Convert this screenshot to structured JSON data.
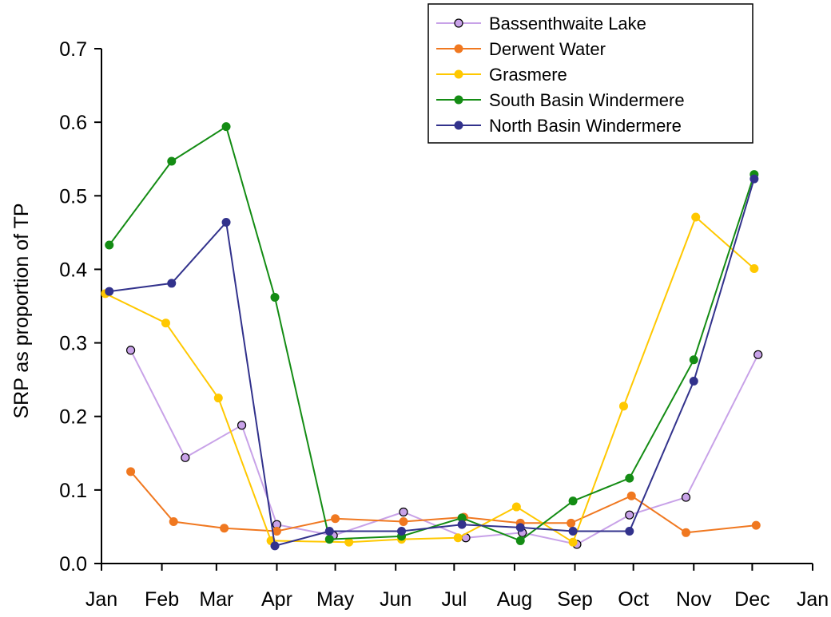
{
  "chart_data": {
    "type": "line",
    "title": "",
    "xlabel": "",
    "ylabel": "SRP as proportion of TP",
    "ylim": [
      0,
      0.7
    ],
    "yticks": [
      "0.0",
      "0.1",
      "0.2",
      "0.3",
      "0.4",
      "0.5",
      "0.6",
      "0.7"
    ],
    "yticks_values": [
      0,
      0.1,
      0.2,
      0.3,
      0.4,
      0.5,
      0.6,
      0.7
    ],
    "x_axis": {
      "type": "date",
      "range": [
        "2005-01-01",
        "2006-01-01"
      ],
      "tick_labels": [
        "Jan",
        "Feb",
        "Mar",
        "Apr",
        "May",
        "Jun",
        "Jul",
        "Aug",
        "Sep",
        "Oct",
        "Nov",
        "Dec",
        "Jan"
      ],
      "tick_dates": [
        "2005-01-01",
        "2005-02-01",
        "2005-03-01",
        "2005-04-01",
        "2005-05-01",
        "2005-06-01",
        "2005-07-01",
        "2005-08-01",
        "2005-09-01",
        "2005-10-01",
        "2005-11-01",
        "2005-12-01",
        "2006-01-01"
      ]
    },
    "grid": false,
    "legend_position": "top-right",
    "series": [
      {
        "name": "Bassenthwaite Lake",
        "color": "#c8a2e8",
        "marker_fill": "#c8a2e8",
        "marker_stroke": "#000000",
        "points": [
          [
            "2005-01-16",
            0.29
          ],
          [
            "2005-02-13",
            0.144
          ],
          [
            "2005-03-14",
            0.188
          ],
          [
            "2005-04-01",
            0.053
          ],
          [
            "2005-04-30",
            0.038
          ],
          [
            "2005-06-05",
            0.07
          ],
          [
            "2005-07-07",
            0.035
          ],
          [
            "2005-08-05",
            0.042
          ],
          [
            "2005-09-02",
            0.026
          ],
          [
            "2005-09-29",
            0.066
          ],
          [
            "2005-10-28",
            0.09
          ],
          [
            "2005-12-04",
            0.284
          ]
        ]
      },
      {
        "name": "Derwent Water",
        "color": "#f07820",
        "marker_fill": "#f07820",
        "marker_stroke": "#f07820",
        "points": [
          [
            "2005-01-16",
            0.125
          ],
          [
            "2005-02-07",
            0.057
          ],
          [
            "2005-03-05",
            0.048
          ],
          [
            "2005-04-01",
            0.044
          ],
          [
            "2005-05-01",
            0.061
          ],
          [
            "2005-06-05",
            0.057
          ],
          [
            "2005-07-06",
            0.063
          ],
          [
            "2005-08-04",
            0.055
          ],
          [
            "2005-08-30",
            0.055
          ],
          [
            "2005-09-30",
            0.092
          ],
          [
            "2005-10-28",
            0.042
          ],
          [
            "2005-12-03",
            0.052
          ]
        ]
      },
      {
        "name": "Grasmere",
        "color": "#ffc800",
        "marker_fill": "#ffc800",
        "marker_stroke": "#ffc800",
        "points": [
          [
            "2005-01-03",
            0.367
          ],
          [
            "2005-02-03",
            0.327
          ],
          [
            "2005-03-02",
            0.225
          ],
          [
            "2005-03-29",
            0.031
          ],
          [
            "2005-05-08",
            0.029
          ],
          [
            "2005-06-04",
            0.033
          ],
          [
            "2005-07-03",
            0.035
          ],
          [
            "2005-08-02",
            0.077
          ],
          [
            "2005-08-31",
            0.029
          ],
          [
            "2005-09-26",
            0.214
          ],
          [
            "2005-11-02",
            0.471
          ],
          [
            "2005-12-02",
            0.401
          ]
        ]
      },
      {
        "name": "South Basin Windermere",
        "color": "#148c14",
        "marker_fill": "#148c14",
        "marker_stroke": "#148c14",
        "points": [
          [
            "2005-01-05",
            0.433
          ],
          [
            "2005-02-06",
            0.547
          ],
          [
            "2005-03-06",
            0.594
          ],
          [
            "2005-03-31",
            0.362
          ],
          [
            "2005-04-28",
            0.033
          ],
          [
            "2005-06-04",
            0.037
          ],
          [
            "2005-07-05",
            0.062
          ],
          [
            "2005-08-04",
            0.031
          ],
          [
            "2005-08-31",
            0.085
          ],
          [
            "2005-09-29",
            0.116
          ],
          [
            "2005-11-01",
            0.277
          ],
          [
            "2005-12-02",
            0.529
          ]
        ]
      },
      {
        "name": "North Basin Windermere",
        "color": "#32328c",
        "marker_fill": "#32328c",
        "marker_stroke": "#32328c",
        "points": [
          [
            "2005-01-05",
            0.37
          ],
          [
            "2005-02-06",
            0.381
          ],
          [
            "2005-03-06",
            0.464
          ],
          [
            "2005-03-31",
            0.024
          ],
          [
            "2005-04-28",
            0.044
          ],
          [
            "2005-06-04",
            0.044
          ],
          [
            "2005-07-05",
            0.053
          ],
          [
            "2005-08-04",
            0.049
          ],
          [
            "2005-08-31",
            0.044
          ],
          [
            "2005-09-29",
            0.044
          ],
          [
            "2005-11-01",
            0.248
          ],
          [
            "2005-12-02",
            0.523
          ]
        ]
      }
    ]
  }
}
